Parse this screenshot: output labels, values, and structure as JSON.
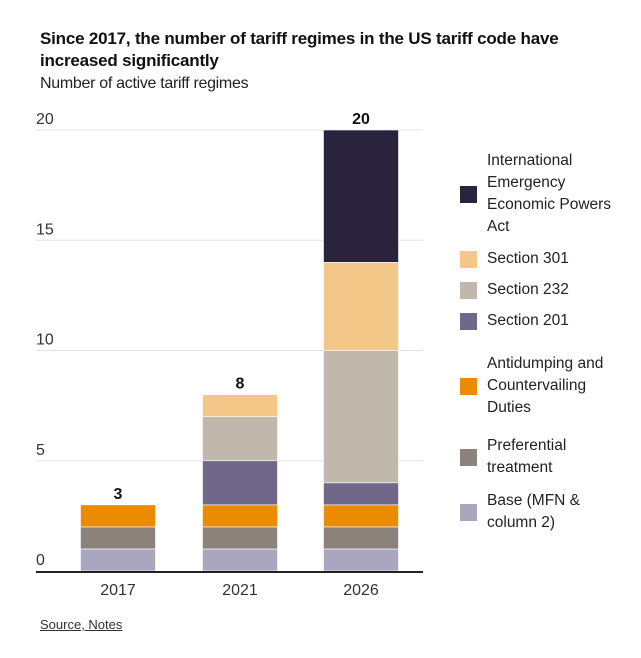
{
  "header": {
    "title": "Since 2017, the number of tariff regimes in the US tariff code have increased significantly",
    "subtitle": "Number of active tariff regimes"
  },
  "footer": {
    "source_link": "Source, Notes"
  },
  "chart_data": {
    "type": "bar",
    "stacked": true,
    "title": "Since 2017, the number of tariff regimes in the US tariff code have increased significantly",
    "subtitle": "Number of active tariff regimes",
    "xlabel": "",
    "ylabel": "",
    "categories": [
      "2017",
      "2021",
      "2026"
    ],
    "totals": [
      3,
      8,
      20
    ],
    "total_labels": [
      "3",
      "8",
      "20"
    ],
    "ylim": [
      0,
      20
    ],
    "yticks": [
      0,
      5,
      10,
      15,
      20
    ],
    "ytick_labels": [
      "0",
      "5",
      "10",
      "15",
      "20"
    ],
    "grid": true,
    "legend_position": "right",
    "series": [
      {
        "name": "Base (MFN & column 2)",
        "color": "#a9a6bf",
        "values": [
          1,
          1,
          1
        ]
      },
      {
        "name": "Preferential treatment",
        "color": "#8a827b",
        "values": [
          1,
          1,
          1
        ]
      },
      {
        "name": "Antidumping and Countervailing Duties",
        "color": "#eb8c00",
        "values": [
          1,
          1,
          1
        ]
      },
      {
        "name": "Section 201",
        "color": "#6f6888",
        "values": [
          0,
          2,
          1
        ]
      },
      {
        "name": "Section 232",
        "color": "#c0b8ad",
        "values": [
          0,
          2,
          6
        ]
      },
      {
        "name": "Section 301",
        "color": "#f2c787",
        "values": [
          0,
          1,
          4
        ]
      },
      {
        "name": "International Emergency Economic Powers Act",
        "color": "#29233d",
        "values": [
          0,
          0,
          6
        ]
      }
    ],
    "legend": [
      {
        "label": "International Emergency Economic Powers Act",
        "color": "#29233d"
      },
      {
        "label": "Section 301",
        "color": "#f2c787"
      },
      {
        "label": "Section 232",
        "color": "#c0b8ad"
      },
      {
        "label": "Section 201",
        "color": "#6f6888"
      },
      {
        "label": "Antidumping and Countervailing Duties",
        "color": "#eb8c00"
      },
      {
        "label": "Preferential treatment",
        "color": "#8a827b"
      },
      {
        "label": "Base (MFN & column 2)",
        "color": "#a9a6bf"
      }
    ]
  }
}
